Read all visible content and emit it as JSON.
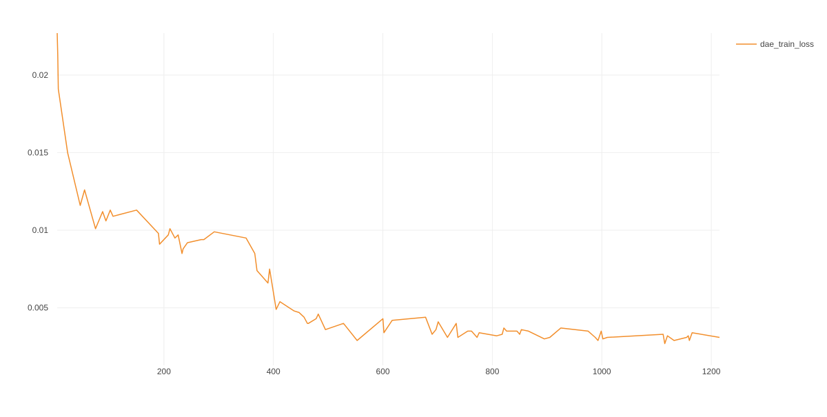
{
  "chart_data": {
    "type": "line",
    "title": "",
    "xlabel": "",
    "ylabel": "",
    "xlim": [
      5,
      1215
    ],
    "ylim": [
      0.0013,
      0.0227
    ],
    "xticks": [
      200,
      400,
      600,
      800,
      1000,
      1200
    ],
    "yticks": [
      0.005,
      0.01,
      0.015,
      0.02
    ],
    "xtick_labels": [
      "200",
      "400",
      "600",
      "800",
      "1000",
      "1200"
    ],
    "ytick_labels": [
      "0.005",
      "0.01",
      "0.015",
      "0.02"
    ],
    "grid": true,
    "legend": "top-right",
    "series": [
      {
        "name": "dae_train_loss",
        "color": "#f28e2b",
        "x": [
          5,
          6,
          7,
          24,
          47,
          55,
          75,
          88,
          94,
          102,
          107,
          118,
          150,
          190,
          192,
          208,
          211,
          220,
          226,
          233,
          235,
          243,
          268,
          273,
          292,
          350,
          366,
          370,
          390,
          393,
          405,
          412,
          438,
          447,
          456,
          462,
          464,
          478,
          482,
          495,
          528,
          553,
          600,
          602,
          617,
          678,
          690,
          697,
          701,
          718,
          734,
          737,
          755,
          762,
          772,
          776,
          808,
          818,
          821,
          826,
          845,
          850,
          853,
          866,
          895,
          905,
          925,
          975,
          988,
          993,
          999,
          1002,
          1010,
          1112,
          1115,
          1120,
          1132,
          1155,
          1158,
          1160,
          1165,
          1215
        ],
        "y": [
          0.0227,
          0.0213,
          0.0191,
          0.015,
          0.0116,
          0.0126,
          0.0101,
          0.0112,
          0.0106,
          0.0113,
          0.0109,
          0.011,
          0.0113,
          0.0098,
          0.0091,
          0.0097,
          0.0101,
          0.0095,
          0.0097,
          0.0085,
          0.0088,
          0.0092,
          0.0094,
          0.0094,
          0.0099,
          0.0095,
          0.0085,
          0.0074,
          0.0066,
          0.0075,
          0.0049,
          0.0054,
          0.0048,
          0.0047,
          0.0044,
          0.004,
          0.004,
          0.0043,
          0.0046,
          0.0036,
          0.004,
          0.0029,
          0.0043,
          0.0034,
          0.0042,
          0.0044,
          0.0033,
          0.0036,
          0.0041,
          0.0031,
          0.004,
          0.0031,
          0.0035,
          0.0035,
          0.0031,
          0.0034,
          0.0032,
          0.0033,
          0.0037,
          0.0035,
          0.0035,
          0.0033,
          0.0036,
          0.0035,
          0.003,
          0.0031,
          0.0037,
          0.0035,
          0.0031,
          0.0029,
          0.0035,
          0.003,
          0.0031,
          0.0033,
          0.0027,
          0.0032,
          0.0029,
          0.0031,
          0.0032,
          0.0029,
          0.0034,
          0.0031
        ]
      }
    ]
  }
}
